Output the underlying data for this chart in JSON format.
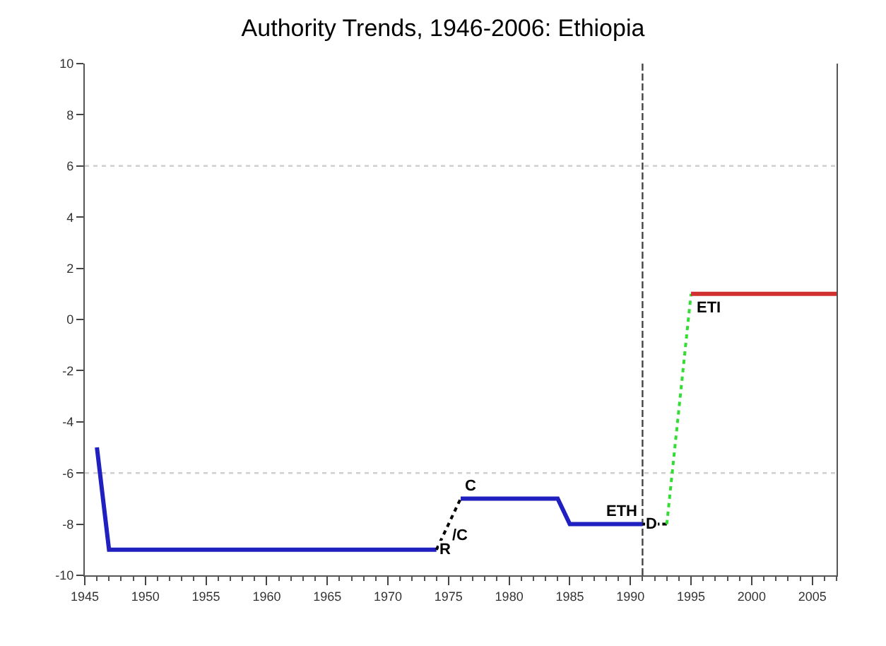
{
  "chart_data": {
    "type": "line",
    "title": "Authority Trends, 1946-2006: Ethiopia",
    "xlim": [
      1945,
      2007
    ],
    "xticks": [
      1945,
      1950,
      1955,
      1960,
      1965,
      1970,
      1975,
      1980,
      1985,
      1990,
      1995,
      2000,
      2005
    ],
    "ylim": [
      -10,
      10
    ],
    "yticks": [
      -10,
      -8,
      -6,
      -4,
      -2,
      0,
      2,
      4,
      6,
      8,
      10
    ],
    "grid": false,
    "marker": "none",
    "series": [
      {
        "color": "#2020c0",
        "line_style": "solid",
        "x": [
          1946,
          1947,
          1974,
          null,
          1976,
          1984,
          1985,
          1991
        ],
        "values": [
          -5,
          -9,
          -9,
          null,
          -7,
          -7,
          -8,
          -8
        ]
      },
      {
        "color": "#000000",
        "line_style": "dotted",
        "x": [
          1974,
          1976
        ],
        "values": [
          -9,
          -7
        ]
      },
      {
        "color": "#000000",
        "line_style": "dashed",
        "x": [
          1991,
          1993
        ],
        "values": [
          -8,
          -8
        ]
      },
      {
        "color": "#33dd33",
        "line_style": "dotted",
        "x": [
          1993,
          1995
        ],
        "values": [
          -8,
          1
        ]
      },
      {
        "color": "#d03030",
        "line_style": "solid",
        "x": [
          1995,
          2007
        ],
        "values": [
          1,
          1
        ]
      }
    ],
    "ref_lines": [
      {
        "axis": "x",
        "value": 1991,
        "color": "#444444",
        "line_style": "dashed"
      },
      {
        "axis": "y",
        "value": 6,
        "color": "#d0d0d0",
        "line_style": "dotted"
      },
      {
        "axis": "y",
        "value": -6,
        "color": "#d0d0d0",
        "line_style": "dotted"
      }
    ],
    "annotations": [
      {
        "text": "R",
        "x": 1974,
        "y": -9
      },
      {
        "text": "/C",
        "x": 1975,
        "y": -8
      },
      {
        "text": "C",
        "x": 1976,
        "y": -7
      },
      {
        "text": "ETH",
        "x": 1991,
        "y": -8
      },
      {
        "text": "D",
        "x": 1991,
        "y": -8
      },
      {
        "text": "ETI",
        "x": 1995,
        "y": 1
      }
    ]
  }
}
